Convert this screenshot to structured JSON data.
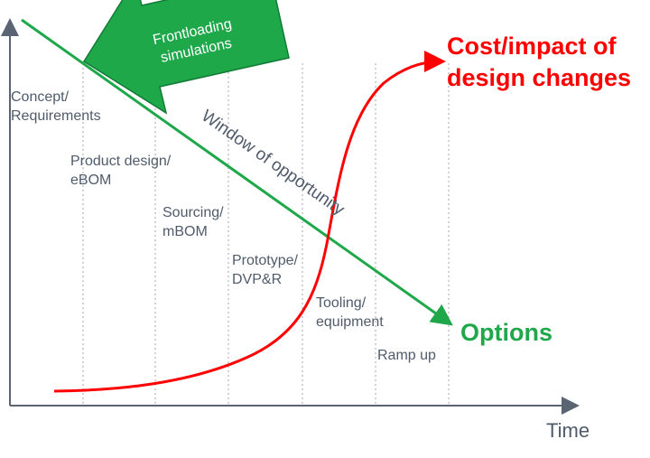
{
  "axis": {
    "x_label": "Time"
  },
  "phases": [
    {
      "line1": "Concept/",
      "line2": "Requirements"
    },
    {
      "line1": "Product design/",
      "line2": "eBOM"
    },
    {
      "line1": "Sourcing/",
      "line2": "mBOM"
    },
    {
      "line1": "Prototype/",
      "line2": "DVP&R"
    },
    {
      "line1": "Tooling/",
      "line2": "equipment"
    },
    {
      "line1": "Ramp up",
      "line2": ""
    }
  ],
  "curves": {
    "cost": {
      "line1": "Cost/impact of",
      "line2": "design changes",
      "color": "#ff0000"
    },
    "options": {
      "label": "Options",
      "color": "#1ea84a"
    }
  },
  "window_label": "Window of opportunity",
  "frontloading": {
    "line1": "Frontloading",
    "line2": "simulations",
    "color": "#1ea84a"
  }
}
